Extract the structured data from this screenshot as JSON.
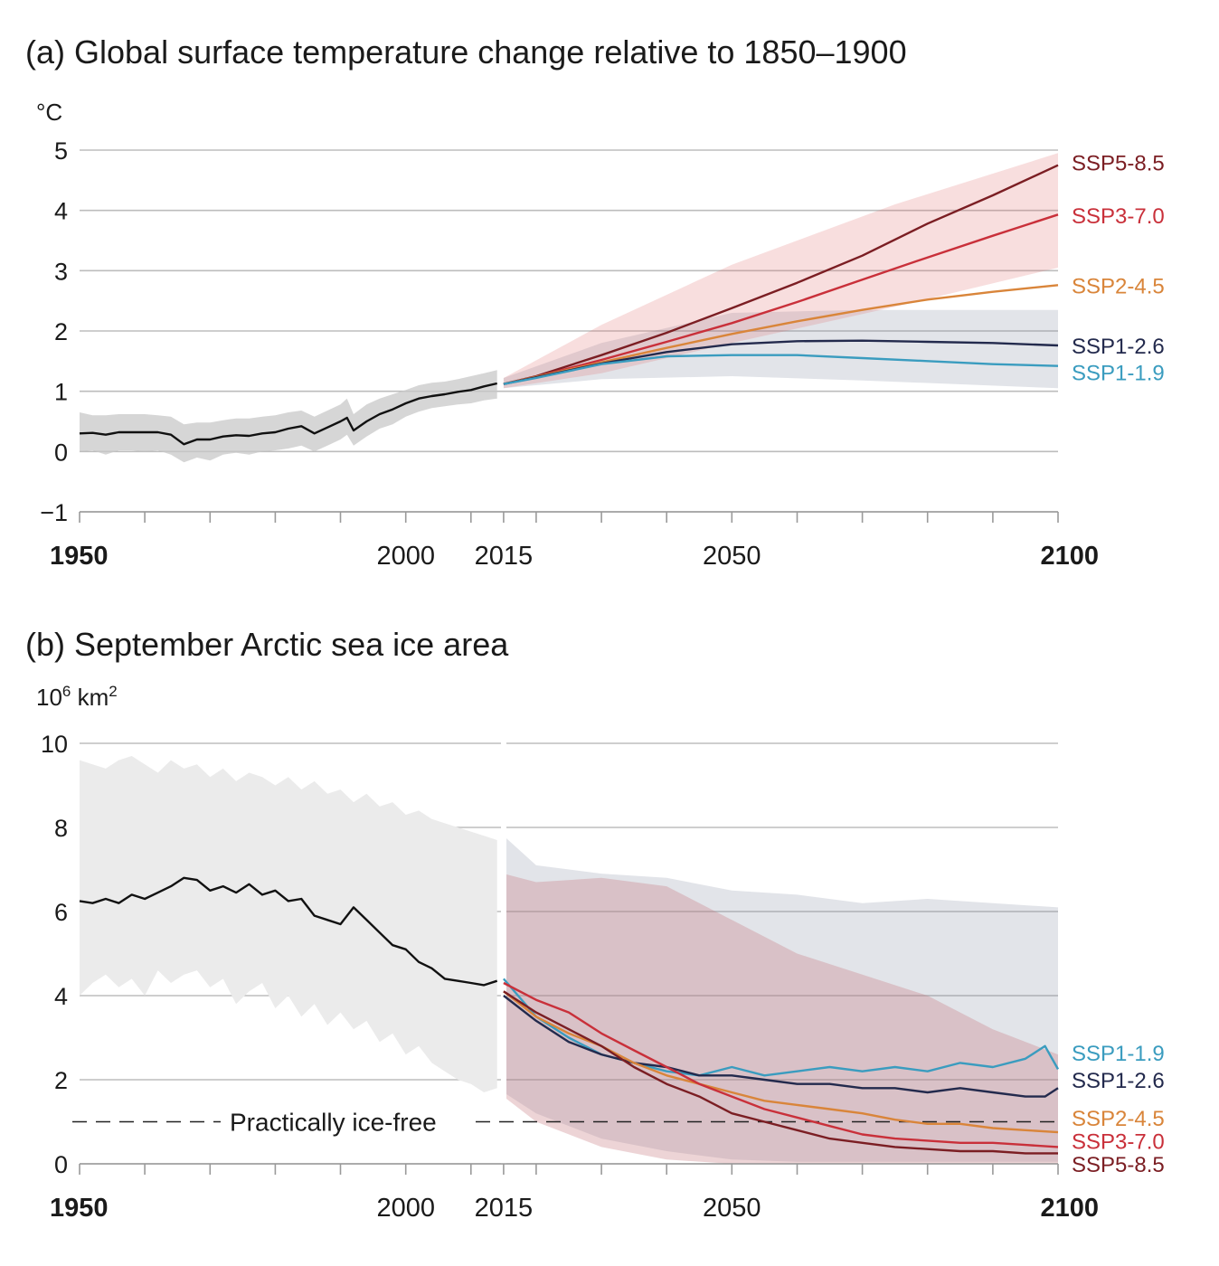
{
  "chart_data": [
    {
      "id": "a",
      "type": "line",
      "title": "(a) Global surface temperature change relative to 1850–1900",
      "ylabel": "°C",
      "ylim": [
        -1,
        5
      ],
      "yticks": [
        "5",
        "4",
        "3",
        "2",
        "1",
        "0",
        "−1"
      ],
      "ytick_values": [
        5,
        4,
        3,
        2,
        1,
        0,
        -1
      ],
      "xlim": [
        1950,
        2100
      ],
      "xtick_labels": [
        {
          "x": 1950,
          "label": "1950",
          "bold": true
        },
        {
          "x": 2000,
          "label": "2000",
          "bold": false
        },
        {
          "x": 2015,
          "label": "2015",
          "bold": false
        },
        {
          "x": 2050,
          "label": "2050",
          "bold": false
        },
        {
          "x": 2100,
          "label": "2100",
          "bold": true
        }
      ],
      "minor_ticks": [
        1960,
        1970,
        1980,
        1990,
        2010,
        2020,
        2030,
        2040,
        2060,
        2070,
        2080,
        2090
      ],
      "grid": true,
      "historical": {
        "color": "#111111",
        "band_color": "#c8c8c8",
        "x": [
          1950,
          1952,
          1954,
          1956,
          1958,
          1960,
          1962,
          1964,
          1966,
          1968,
          1970,
          1972,
          1974,
          1976,
          1978,
          1980,
          1982,
          1984,
          1986,
          1988,
          1990,
          1991,
          1992,
          1994,
          1996,
          1998,
          2000,
          2002,
          2004,
          2006,
          2008,
          2010,
          2012,
          2014
        ],
        "y": [
          0.3,
          0.31,
          0.28,
          0.32,
          0.32,
          0.32,
          0.32,
          0.28,
          0.12,
          0.2,
          0.2,
          0.25,
          0.27,
          0.26,
          0.3,
          0.32,
          0.38,
          0.42,
          0.3,
          0.4,
          0.5,
          0.56,
          0.35,
          0.5,
          0.62,
          0.7,
          0.8,
          0.88,
          0.92,
          0.95,
          0.99,
          1.02,
          1.08,
          1.13
        ],
        "band_low": [
          0.0,
          0.02,
          -0.05,
          0.02,
          0.02,
          0.0,
          0.02,
          -0.05,
          -0.18,
          -0.1,
          -0.15,
          -0.05,
          -0.02,
          -0.05,
          0.0,
          0.02,
          0.05,
          0.1,
          0.0,
          0.1,
          0.2,
          0.28,
          0.1,
          0.25,
          0.38,
          0.45,
          0.58,
          0.66,
          0.72,
          0.75,
          0.78,
          0.8,
          0.85,
          0.88
        ],
        "band_high": [
          0.65,
          0.6,
          0.6,
          0.62,
          0.62,
          0.62,
          0.6,
          0.58,
          0.45,
          0.48,
          0.48,
          0.52,
          0.55,
          0.55,
          0.58,
          0.6,
          0.65,
          0.68,
          0.58,
          0.68,
          0.78,
          0.88,
          0.62,
          0.78,
          0.88,
          0.95,
          1.02,
          1.1,
          1.14,
          1.16,
          1.2,
          1.25,
          1.3,
          1.35
        ]
      },
      "bands": [
        {
          "color": "#7a8699",
          "opacity": 0.22,
          "x": [
            2015,
            2030,
            2050,
            2070,
            2100
          ],
          "low": [
            1.05,
            1.2,
            1.25,
            1.18,
            1.05
          ],
          "high": [
            1.22,
            1.8,
            2.3,
            2.35,
            2.35
          ]
        },
        {
          "color": "#e06a6a",
          "opacity": 0.22,
          "x": [
            2015,
            2030,
            2050,
            2075,
            2100
          ],
          "low": [
            1.05,
            1.3,
            1.8,
            2.4,
            3.05
          ],
          "high": [
            1.22,
            2.1,
            3.1,
            4.1,
            4.95
          ]
        }
      ],
      "series": [
        {
          "name": "SSP5-8.5",
          "color": "#7b1e23",
          "x": [
            2015,
            2020,
            2030,
            2040,
            2050,
            2060,
            2070,
            2080,
            2090,
            2100
          ],
          "y": [
            1.12,
            1.25,
            1.6,
            1.97,
            2.38,
            2.8,
            3.25,
            3.78,
            4.25,
            4.75
          ],
          "label_y": 4.8
        },
        {
          "name": "SSP3-7.0",
          "color": "#c9303a",
          "x": [
            2015,
            2020,
            2030,
            2040,
            2050,
            2060,
            2070,
            2080,
            2090,
            2100
          ],
          "y": [
            1.12,
            1.24,
            1.52,
            1.82,
            2.13,
            2.48,
            2.85,
            3.22,
            3.58,
            3.93
          ],
          "label_y": 3.92
        },
        {
          "name": "SSP2-4.5",
          "color": "#d9853a",
          "x": [
            2015,
            2020,
            2030,
            2040,
            2050,
            2060,
            2070,
            2080,
            2090,
            2100
          ],
          "y": [
            1.12,
            1.24,
            1.48,
            1.72,
            1.95,
            2.16,
            2.35,
            2.52,
            2.65,
            2.76
          ],
          "label_y": 2.76
        },
        {
          "name": "SSP1-2.6",
          "color": "#232a4d",
          "x": [
            2015,
            2020,
            2030,
            2040,
            2050,
            2060,
            2070,
            2080,
            2090,
            2100
          ],
          "y": [
            1.12,
            1.23,
            1.46,
            1.65,
            1.78,
            1.83,
            1.84,
            1.82,
            1.8,
            1.76
          ],
          "label_y": 1.76
        },
        {
          "name": "SSP1-1.9",
          "color": "#3a9cbf",
          "x": [
            2015,
            2020,
            2030,
            2040,
            2050,
            2060,
            2070,
            2080,
            2090,
            2100
          ],
          "y": [
            1.12,
            1.22,
            1.45,
            1.58,
            1.6,
            1.6,
            1.55,
            1.5,
            1.45,
            1.42
          ],
          "label_y": 1.32
        }
      ]
    },
    {
      "id": "b",
      "type": "line",
      "title": "(b) September Arctic sea ice area",
      "ylabel_base": "10",
      "ylabel_sup": "6",
      "ylabel_unit": " km",
      "ylabel_unit_sup": "2",
      "ylim": [
        0,
        10
      ],
      "yticks": [
        "10",
        "8",
        "6",
        "4",
        "2",
        "0"
      ],
      "ytick_values": [
        10,
        8,
        6,
        4,
        2,
        0
      ],
      "xlim": [
        1950,
        2100
      ],
      "xtick_labels": [
        {
          "x": 1950,
          "label": "1950",
          "bold": true
        },
        {
          "x": 2000,
          "label": "2000",
          "bold": false
        },
        {
          "x": 2015,
          "label": "2015",
          "bold": false
        },
        {
          "x": 2050,
          "label": "2050",
          "bold": false
        },
        {
          "x": 2100,
          "label": "2100",
          "bold": true
        }
      ],
      "minor_ticks": [
        1960,
        1970,
        1980,
        1990,
        2010,
        2020,
        2030,
        2040,
        2060,
        2070,
        2080,
        2090
      ],
      "grid": true,
      "threshold": {
        "y": 1,
        "label": "Practically ice-free"
      },
      "historical": {
        "color": "#111111",
        "band_color": "#ebebeb",
        "x": [
          1950,
          1952,
          1954,
          1956,
          1958,
          1960,
          1962,
          1964,
          1966,
          1968,
          1970,
          1972,
          1974,
          1976,
          1978,
          1980,
          1982,
          1984,
          1986,
          1988,
          1990,
          1992,
          1994,
          1996,
          1998,
          2000,
          2002,
          2004,
          2006,
          2008,
          2010,
          2012,
          2014
        ],
        "y": [
          6.25,
          6.2,
          6.3,
          6.2,
          6.4,
          6.3,
          6.45,
          6.6,
          6.8,
          6.75,
          6.5,
          6.6,
          6.45,
          6.65,
          6.4,
          6.5,
          6.25,
          6.3,
          5.9,
          5.8,
          5.7,
          6.1,
          5.8,
          5.5,
          5.2,
          5.1,
          4.8,
          4.65,
          4.4,
          4.35,
          4.3,
          4.25,
          4.35
        ],
        "band_low": [
          4.0,
          4.3,
          4.5,
          4.2,
          4.4,
          4.0,
          4.6,
          4.3,
          4.5,
          4.6,
          4.2,
          4.4,
          3.8,
          4.1,
          4.3,
          3.7,
          4.0,
          3.5,
          3.8,
          3.3,
          3.6,
          3.2,
          3.4,
          2.9,
          3.1,
          2.6,
          2.8,
          2.4,
          2.2,
          2.0,
          1.9,
          1.7,
          1.8
        ],
        "band_high": [
          9.6,
          9.5,
          9.4,
          9.6,
          9.7,
          9.5,
          9.3,
          9.6,
          9.4,
          9.5,
          9.2,
          9.4,
          9.1,
          9.3,
          9.2,
          9.0,
          9.2,
          8.9,
          9.1,
          8.8,
          8.9,
          8.6,
          8.8,
          8.5,
          8.6,
          8.3,
          8.4,
          8.2,
          8.1,
          8.0,
          7.9,
          7.8,
          7.7
        ]
      },
      "bands": [
        {
          "color": "#7a8699",
          "opacity": 0.22,
          "x": [
            2015,
            2020,
            2030,
            2040,
            2050,
            2060,
            2070,
            2080,
            2090,
            2100
          ],
          "low": [
            1.7,
            1.2,
            0.6,
            0.3,
            0.1,
            0.05,
            0.05,
            0.05,
            0.05,
            0.05
          ],
          "high": [
            7.8,
            7.1,
            6.9,
            6.8,
            6.5,
            6.4,
            6.2,
            6.3,
            6.2,
            6.1
          ]
        },
        {
          "color": "#c8797f",
          "opacity": 0.32,
          "x": [
            2015,
            2020,
            2030,
            2040,
            2050,
            2060,
            2070,
            2080,
            2090,
            2100
          ],
          "low": [
            1.6,
            1.0,
            0.4,
            0.1,
            0.0,
            0.0,
            0.0,
            0.0,
            0.0,
            0.0
          ],
          "high": [
            6.9,
            6.7,
            6.8,
            6.6,
            5.8,
            5.0,
            4.5,
            4.0,
            3.2,
            2.6
          ]
        }
      ],
      "series": [
        {
          "name": "SSP1-1.9",
          "color": "#3a9cbf",
          "x": [
            2015,
            2020,
            2025,
            2030,
            2035,
            2040,
            2045,
            2050,
            2055,
            2060,
            2065,
            2070,
            2075,
            2080,
            2085,
            2090,
            2095,
            2098,
            2100
          ],
          "y": [
            4.4,
            3.5,
            3.0,
            2.6,
            2.4,
            2.2,
            2.1,
            2.3,
            2.1,
            2.2,
            2.3,
            2.2,
            2.3,
            2.2,
            2.4,
            2.3,
            2.5,
            2.8,
            2.25
          ],
          "label_y": 2.65
        },
        {
          "name": "SSP1-2.6",
          "color": "#232a4d",
          "x": [
            2015,
            2020,
            2025,
            2030,
            2035,
            2040,
            2045,
            2050,
            2055,
            2060,
            2065,
            2070,
            2075,
            2080,
            2085,
            2090,
            2095,
            2098,
            2100
          ],
          "y": [
            4.0,
            3.4,
            2.9,
            2.6,
            2.4,
            2.3,
            2.1,
            2.1,
            2.0,
            1.9,
            1.9,
            1.8,
            1.8,
            1.7,
            1.8,
            1.7,
            1.6,
            1.6,
            1.8
          ],
          "label_y": 2.0
        },
        {
          "name": "SSP2-4.5",
          "color": "#d9853a",
          "x": [
            2015,
            2020,
            2025,
            2030,
            2035,
            2040,
            2045,
            2050,
            2055,
            2060,
            2065,
            2070,
            2075,
            2080,
            2085,
            2090,
            2095,
            2100
          ],
          "y": [
            4.1,
            3.5,
            3.1,
            2.8,
            2.4,
            2.1,
            1.9,
            1.7,
            1.5,
            1.4,
            1.3,
            1.2,
            1.05,
            0.95,
            0.95,
            0.85,
            0.8,
            0.75
          ],
          "label_y": 1.1
        },
        {
          "name": "SSP3-7.0",
          "color": "#c9303a",
          "x": [
            2015,
            2020,
            2025,
            2030,
            2035,
            2040,
            2045,
            2050,
            2055,
            2060,
            2065,
            2070,
            2075,
            2080,
            2085,
            2090,
            2095,
            2100
          ],
          "y": [
            4.3,
            3.9,
            3.6,
            3.1,
            2.7,
            2.3,
            1.9,
            1.6,
            1.3,
            1.1,
            0.9,
            0.7,
            0.6,
            0.55,
            0.5,
            0.5,
            0.45,
            0.4
          ],
          "label_y": 0.55
        },
        {
          "name": "SSP5-8.5",
          "color": "#7b1e23",
          "x": [
            2015,
            2020,
            2025,
            2030,
            2035,
            2040,
            2045,
            2050,
            2055,
            2060,
            2065,
            2070,
            2075,
            2080,
            2085,
            2090,
            2095,
            2100
          ],
          "y": [
            4.1,
            3.6,
            3.2,
            2.8,
            2.3,
            1.9,
            1.6,
            1.2,
            1.0,
            0.8,
            0.6,
            0.5,
            0.4,
            0.35,
            0.3,
            0.3,
            0.25,
            0.25
          ],
          "label_y": 0.0
        }
      ]
    }
  ]
}
